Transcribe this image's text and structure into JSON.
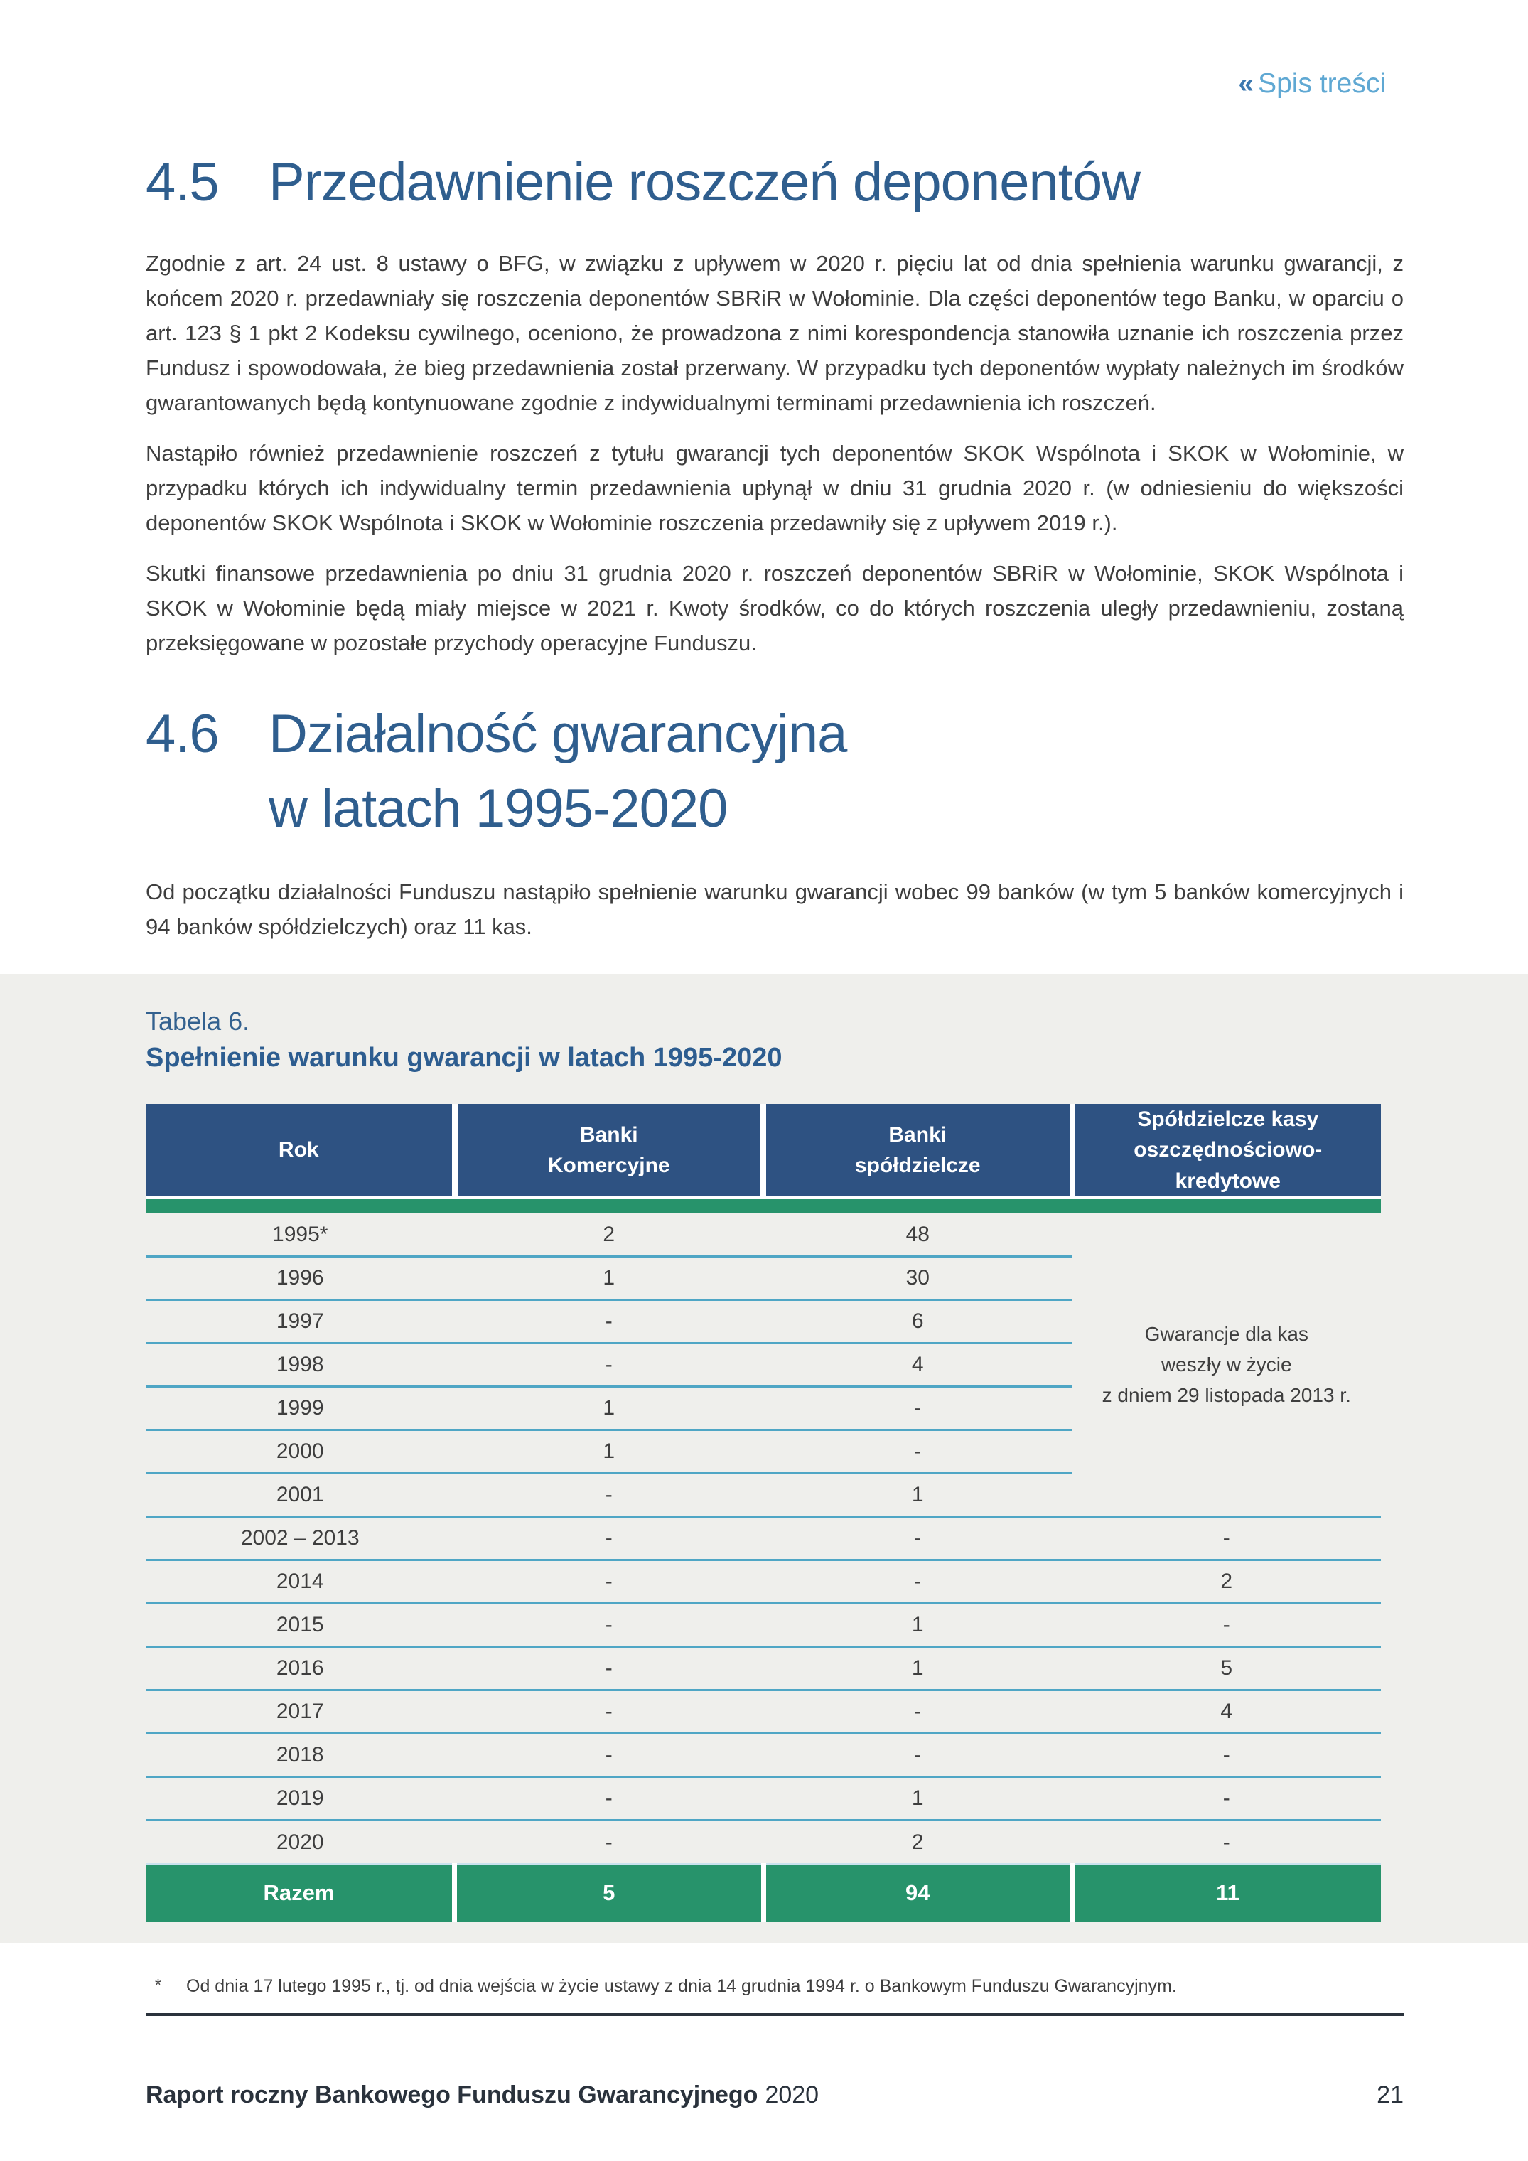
{
  "page": {
    "toc_link": {
      "icon": "«",
      "label": "Spis treści"
    },
    "footer": {
      "title_bold": "Raport roczny Bankowego Funduszu Gwarancyjnego",
      "title_year": "2020",
      "page_number": "21"
    }
  },
  "sections": {
    "s45": {
      "number": "4.5",
      "title": "Przedawnienie roszczeń deponentów",
      "paragraphs": [
        "Zgodnie z art. 24 ust. 8 ustawy o BFG, w związku z upływem w 2020 r. pięciu lat od dnia spełnienia warunku gwarancji, z końcem 2020 r. przedawniały się roszczenia deponentów SBRiR w Wołominie. Dla części deponentów tego Banku, w oparciu o art. 123 § 1 pkt 2 Kodeksu cywilnego, oceniono, że prowadzona z nimi korespondencja stanowiła uznanie ich roszczenia przez Fundusz i spowodowała, że bieg przedawnienia został przerwany. W przypadku tych deponentów wypłaty należnych im środków gwarantowanych będą kontynuowane zgodnie z indywidualnymi terminami przedawnienia ich roszczeń.",
        "Nastąpiło również przedawnienie roszczeń z tytułu gwarancji tych deponentów SKOK Wspólnota i SKOK w Wołominie, w przypadku których ich indywidualny termin przedawnienia upłynął w dniu 31 grudnia 2020 r. (w odniesieniu do większości deponentów SKOK Wspólnota i SKOK w Wołominie roszczenia przedawniły się z upływem 2019 r.).",
        "Skutki finansowe przedawnienia po dniu 31 grudnia 2020 r. roszczeń deponentów SBRiR w Wołominie, SKOK Wspólnota i SKOK w Wołominie będą miały miejsce w 2021 r. Kwoty środków, co do których roszczenia uległy przedawnieniu, zostaną przeksięgowane w pozostałe przychody operacyjne Funduszu."
      ]
    },
    "s46": {
      "number": "4.6",
      "title_line1": "Działalność gwarancyjna",
      "title_line2": "w latach 1995-2020",
      "paragraph": "Od początku działalności Funduszu nastąpiło spełnienie warunku gwarancji wobec 99 banków (w tym 5 banków komercyjnych i 94 banków spółdzielczych) oraz 11 kas."
    }
  },
  "table": {
    "label": "Tabela 6.",
    "title": "Spełnienie warunku gwarancji w latach 1995-2020",
    "columns": [
      {
        "lines": [
          "Rok"
        ]
      },
      {
        "lines": [
          "Banki",
          "Komercyjne"
        ]
      },
      {
        "lines": [
          "Banki",
          "spółdzielcze"
        ]
      },
      {
        "lines": [
          "Spółdzielcze kasy",
          "oszczędnościowo-kredytowe"
        ]
      }
    ],
    "merged_note": {
      "rowspan": 7,
      "lines": [
        "Gwarancje dla kas",
        "weszły w życie",
        "z dniem 29 listopada 2013 r."
      ]
    },
    "rows": [
      {
        "year": "1995*",
        "commercial": "2",
        "cooperative": "48",
        "skok": null
      },
      {
        "year": "1996",
        "commercial": "1",
        "cooperative": "30",
        "skok": null
      },
      {
        "year": "1997",
        "commercial": "-",
        "cooperative": "6",
        "skok": null
      },
      {
        "year": "1998",
        "commercial": "-",
        "cooperative": "4",
        "skok": null
      },
      {
        "year": "1999",
        "commercial": "1",
        "cooperative": "-",
        "skok": null
      },
      {
        "year": "2000",
        "commercial": "1",
        "cooperative": "-",
        "skok": null
      },
      {
        "year": "2001",
        "commercial": "-",
        "cooperative": "1",
        "skok": null
      },
      {
        "year": "2002 – 2013",
        "commercial": "-",
        "cooperative": "-",
        "skok": "-"
      },
      {
        "year": "2014",
        "commercial": "-",
        "cooperative": "-",
        "skok": "2"
      },
      {
        "year": "2015",
        "commercial": "-",
        "cooperative": "1",
        "skok": "-"
      },
      {
        "year": "2016",
        "commercial": "-",
        "cooperative": "1",
        "skok": "5"
      },
      {
        "year": "2017",
        "commercial": "-",
        "cooperative": "-",
        "skok": "4"
      },
      {
        "year": "2018",
        "commercial": "-",
        "cooperative": "-",
        "skok": "-"
      },
      {
        "year": "2019",
        "commercial": "-",
        "cooperative": "1",
        "skok": "-"
      },
      {
        "year": "2020",
        "commercial": "-",
        "cooperative": "2",
        "skok": "-"
      }
    ],
    "total": {
      "label": "Razem",
      "commercial": "5",
      "cooperative": "94",
      "skok": "11"
    }
  },
  "footnote": {
    "marker": "*",
    "text": "Od dnia 17 lutego 1995 r., tj. od dnia wejścia w życie ustawy z dnia 14 grudnia 1994 r. o Bankowym Funduszu Gwarancyjnym."
  },
  "colors": {
    "heading_blue": "#2F5E8E",
    "table_label_blue": "#33618F",
    "table_title_blue": "#2D5D90",
    "header_navy": "#2E5282",
    "green": "#27936B",
    "row_separator": "#4FA6C5",
    "light_separator": "#C9E2EE",
    "panel_gray": "#EFEFEC",
    "link_blue": "#5FA8D3",
    "link_chevron_blue": "#3C79B0",
    "body_text": "#3E3E3E",
    "footer_text": "#2A323C"
  }
}
